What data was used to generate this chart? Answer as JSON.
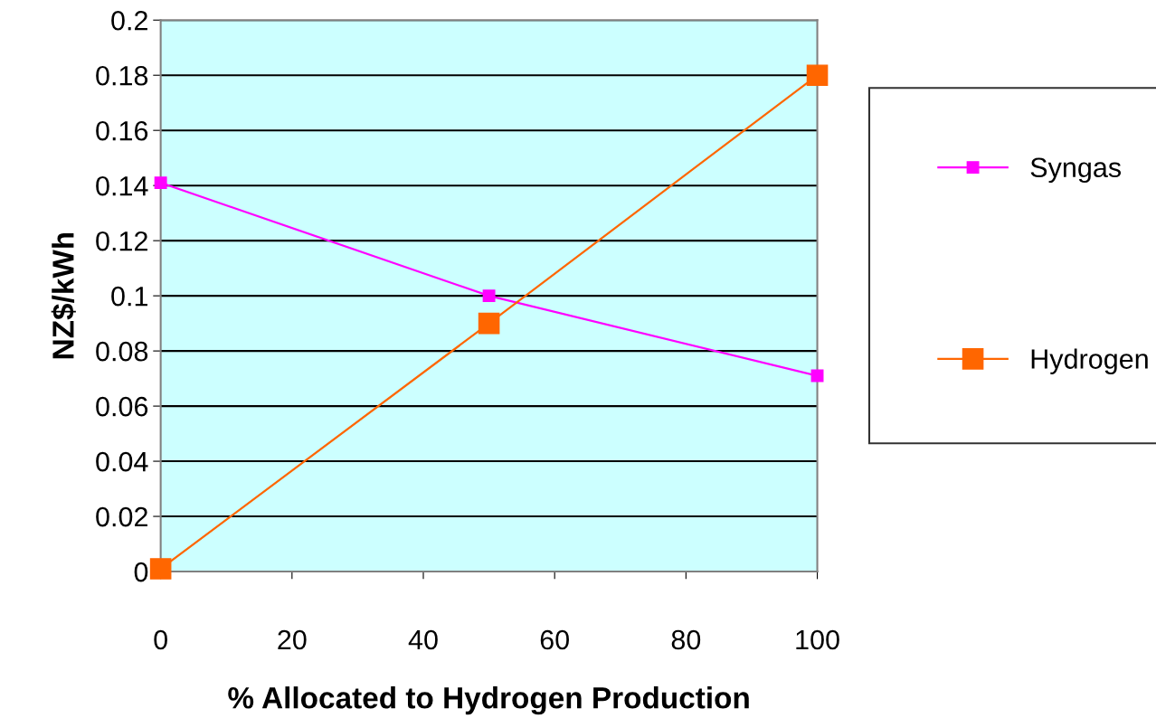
{
  "chart_data": {
    "type": "line",
    "xlabel": "% Allocated to Hydrogen Production",
    "ylabel": "NZ$/kWh",
    "x": [
      0,
      50,
      100
    ],
    "series": [
      {
        "name": "Syngas",
        "color": "#ff00ff",
        "values": [
          0.141,
          0.1,
          0.071
        ],
        "marker": "square"
      },
      {
        "name": "Hydrogen",
        "color": "#ff6600",
        "values": [
          0.001,
          0.09,
          0.18
        ],
        "marker": "square"
      }
    ],
    "xlim": [
      0,
      100
    ],
    "xticks": [
      0,
      20,
      40,
      60,
      80,
      100
    ],
    "ylim": [
      0,
      0.2
    ],
    "yticks": [
      0,
      0.02,
      0.04,
      0.06,
      0.08,
      0.1,
      0.12,
      0.14,
      0.16,
      0.18,
      0.2
    ],
    "grid": "y",
    "legend": "right",
    "line_style": "solid"
  }
}
